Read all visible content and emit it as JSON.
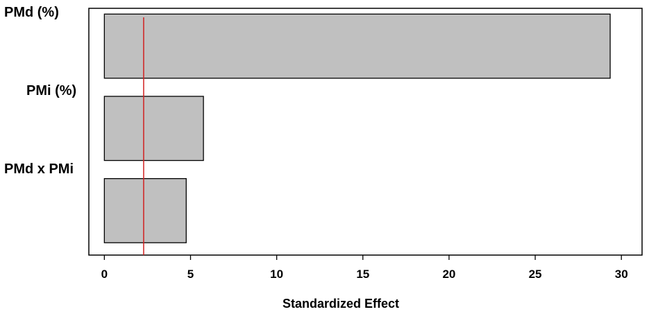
{
  "chart_data": {
    "type": "bar",
    "orientation": "horizontal",
    "title": "",
    "categories": [
      "PMd (%)",
      "PMi (%)",
      "PMd x PMi"
    ],
    "values": [
      29.35,
      5.75,
      4.75
    ],
    "xlabel": "Standardized Effect",
    "ylabel": "",
    "xlim": [
      -0.9,
      31.2
    ],
    "xticks": [
      0,
      5,
      10,
      15,
      20,
      25,
      30
    ],
    "reference_line": {
      "value": 2.28
    },
    "grid": false,
    "legend": "none",
    "colors": {
      "bar_fill": "#c0c0c0",
      "bar_stroke": "#000000",
      "reference_line": "#d22020"
    }
  }
}
